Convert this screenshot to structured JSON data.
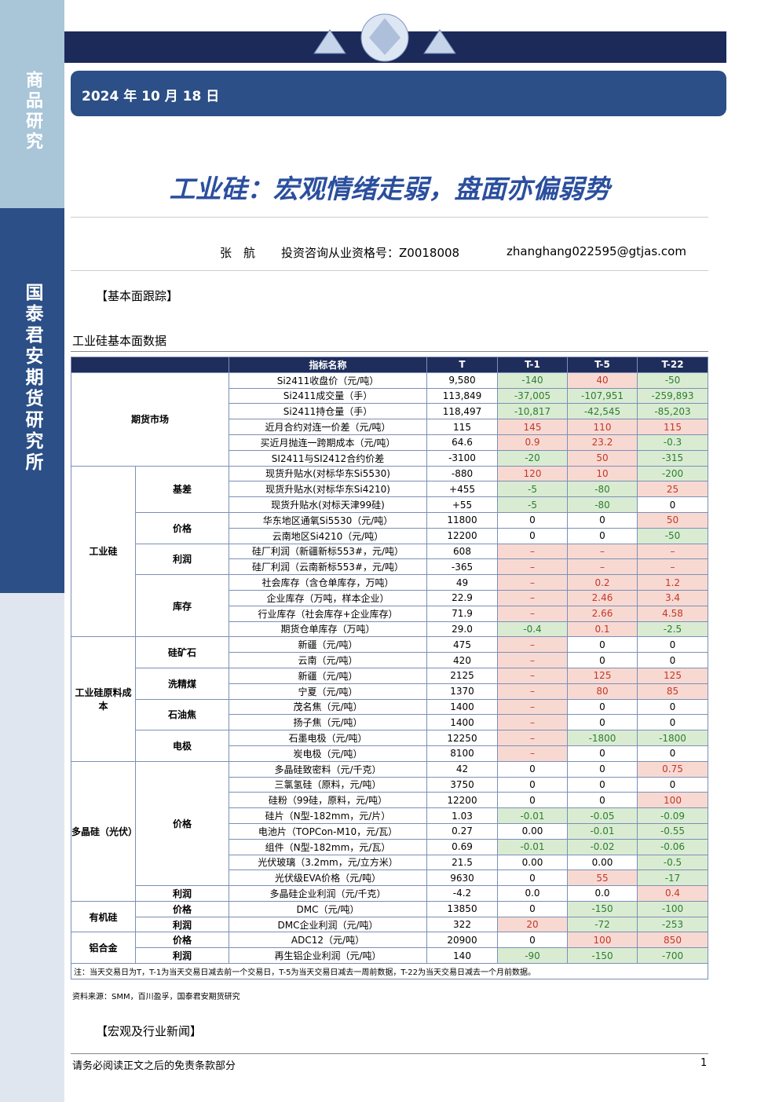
{
  "sidebar": {
    "top": "商品研究",
    "middle": "国泰君安期货研究所"
  },
  "header": {
    "date": "2024 年 10 月 18 日",
    "title": "工业硅：宏观情绪走弱，盘面亦偏弱势",
    "author": "张　航",
    "license": "投资咨询从业资格号：Z0018008",
    "email": "zhanghang022595@gtjas.com"
  },
  "section1": "【基本面跟踪】",
  "table": {
    "caption": "工业硅基本面数据",
    "columns": [
      "指标名称",
      "T",
      "T-1",
      "T-5",
      "T-22"
    ],
    "groups": [
      {
        "label": "期货市场",
        "rows": [
          [
            "Si2411收盘价（元/吨）",
            "9,580",
            "-140",
            "40",
            "-50"
          ],
          [
            "Si2411成交量（手）",
            "113,849",
            "-37,005",
            "-107,951",
            "-259,893"
          ],
          [
            "Si2411持仓量（手）",
            "118,497",
            "-10,817",
            "-42,545",
            "-85,203"
          ],
          [
            "近月合约对连一价差（元/吨）",
            "115",
            "145",
            "110",
            "115"
          ],
          [
            "买近月抛连一跨期成本（元/吨）",
            "64.6",
            "0.9",
            "23.2",
            "-0.3"
          ],
          [
            "SI2411与SI2412合约价差",
            "-3100",
            "-20",
            "50",
            "-315"
          ]
        ]
      },
      {
        "label": "工业硅",
        "subgroups": [
          {
            "label": "基差",
            "rows": [
              [
                "现货升贴水(对标华东Si5530)",
                "-880",
                "120",
                "10",
                "-200"
              ],
              [
                "现货升贴水(对标华东Si4210)",
                "+455",
                "-5",
                "-80",
                "25"
              ],
              [
                "现货升贴水(对标天津99硅)",
                "+55",
                "-5",
                "-80",
                "0"
              ]
            ]
          },
          {
            "label": "价格",
            "rows": [
              [
                "华东地区通氧Si5530（元/吨）",
                "11800",
                "0",
                "0",
                "50"
              ],
              [
                "云南地区Si4210（元/吨）",
                "12200",
                "0",
                "0",
                "-50"
              ]
            ]
          },
          {
            "label": "利润",
            "rows": [
              [
                "硅厂利润（新疆新标553#，元/吨）",
                "608",
                "–",
                "–",
                "–"
              ],
              [
                "硅厂利润（云南新标553#，元/吨）",
                "-365",
                "–",
                "–",
                "–"
              ]
            ]
          },
          {
            "label": "库存",
            "rows": [
              [
                "社会库存（含仓单库存，万吨）",
                "49",
                "–",
                "0.2",
                "1.2"
              ],
              [
                "企业库存（万吨，样本企业）",
                "22.9",
                "–",
                "2.46",
                "3.4"
              ],
              [
                "行业库存（社会库存+企业库存）",
                "71.9",
                "–",
                "2.66",
                "4.58"
              ],
              [
                "期货仓单库存（万吨）",
                "29.0",
                "-0.4",
                "0.1",
                "-2.5"
              ]
            ]
          }
        ]
      },
      {
        "label": "工业硅原料成本",
        "subgroups": [
          {
            "label": "硅矿石",
            "rows": [
              [
                "新疆（元/吨）",
                "475",
                "–",
                "0",
                "0"
              ],
              [
                "云南（元/吨）",
                "420",
                "–",
                "0",
                "0"
              ]
            ]
          },
          {
            "label": "洗精煤",
            "rows": [
              [
                "新疆（元/吨）",
                "2125",
                "–",
                "125",
                "125"
              ],
              [
                "宁夏（元/吨）",
                "1370",
                "–",
                "80",
                "85"
              ]
            ]
          },
          {
            "label": "石油焦",
            "rows": [
              [
                "茂名焦（元/吨）",
                "1400",
                "–",
                "0",
                "0"
              ],
              [
                "扬子焦（元/吨）",
                "1400",
                "–",
                "0",
                "0"
              ]
            ]
          },
          {
            "label": "电极",
            "rows": [
              [
                "石墨电极（元/吨）",
                "12250",
                "–",
                "-1800",
                "-1800"
              ],
              [
                "炭电极（元/吨）",
                "8100",
                "–",
                "0",
                "0"
              ]
            ]
          }
        ]
      },
      {
        "label": "多晶硅（光伏）",
        "subgroups": [
          {
            "label": "价格",
            "rows": [
              [
                "多晶硅致密料（元/千克）",
                "42",
                "0",
                "0",
                "0.75"
              ],
              [
                "三氯氢硅（原料，元/吨）",
                "3750",
                "0",
                "0",
                "0"
              ],
              [
                "硅粉（99硅，原料，元/吨）",
                "12200",
                "0",
                "0",
                "100"
              ],
              [
                "硅片（N型-182mm，元/片）",
                "1.03",
                "-0.01",
                "-0.05",
                "-0.09"
              ],
              [
                "电池片（TOPCon-M10，元/瓦）",
                "0.27",
                "0.00",
                "-0.01",
                "-0.55"
              ],
              [
                "组件（N型-182mm，元/瓦）",
                "0.69",
                "-0.01",
                "-0.02",
                "-0.06"
              ],
              [
                "光伏玻璃（3.2mm，元/立方米）",
                "21.5",
                "0.00",
                "0.00",
                "-0.5"
              ],
              [
                "光伏级EVA价格（元/吨）",
                "9630",
                "0",
                "55",
                "-17"
              ]
            ]
          },
          {
            "label": "利润",
            "rows": [
              [
                "多晶硅企业利润（元/千克）",
                "-4.2",
                "0.0",
                "0.0",
                "0.4"
              ]
            ]
          }
        ]
      },
      {
        "label": "有机硅",
        "subgroups": [
          {
            "label": "价格",
            "rows": [
              [
                "DMC（元/吨）",
                "13850",
                "0",
                "-150",
                "-100"
              ]
            ]
          },
          {
            "label": "利润",
            "rows": [
              [
                "DMC企业利润（元/吨）",
                "322",
                "20",
                "-72",
                "-253"
              ]
            ]
          }
        ]
      },
      {
        "label": "铝合金",
        "subgroups": [
          {
            "label": "价格",
            "rows": [
              [
                "ADC12（元/吨）",
                "20900",
                "0",
                "100",
                "850"
              ]
            ]
          },
          {
            "label": "利润",
            "rows": [
              [
                "再生铝企业利润（元/吨）",
                "140",
                "-90",
                "-150",
                "-700"
              ]
            ]
          }
        ]
      }
    ],
    "note": "注：当天交易日为T，T-1为当天交易日减去前一个交易日，T-5为当天交易日减去一周前数据，T-22为当天交易日减去一个月前数据。",
    "source": "资料来源：SMM，百川盈孚，国泰君安期货研究"
  },
  "section2": "【宏观及行业新闻】",
  "footer": {
    "disclaimer": "请务必阅读正文之后的免责条款部分",
    "page": "1"
  }
}
